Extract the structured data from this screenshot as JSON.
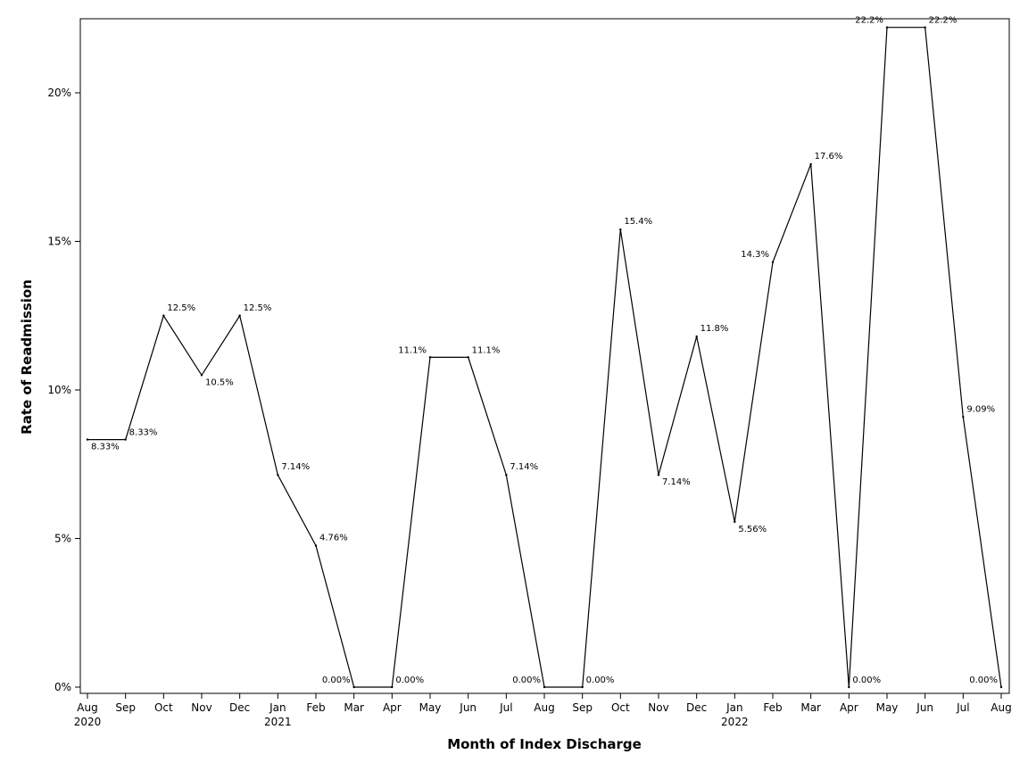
{
  "chart_data": {
    "type": "line",
    "xlabel": "Month of Index Discharge",
    "ylabel": "Rate of Readmission",
    "ylim": [
      0,
      22.5
    ],
    "yticks": [
      0,
      5,
      10,
      15,
      20
    ],
    "ytick_labels": [
      "0%",
      "5%",
      "10%",
      "15%",
      "20%"
    ],
    "grid": false,
    "legend": "none",
    "x": [
      "2020-08",
      "2020-09",
      "2020-10",
      "2020-11",
      "2020-12",
      "2021-01",
      "2021-02",
      "2021-03",
      "2021-04",
      "2021-05",
      "2021-06",
      "2021-07",
      "2021-08",
      "2021-09",
      "2021-10",
      "2021-11",
      "2021-12",
      "2022-01",
      "2022-02",
      "2022-03",
      "2022-04",
      "2022-05",
      "2022-06",
      "2022-07",
      "2022-08"
    ],
    "month_labels": [
      "Aug",
      "Sep",
      "Oct",
      "Nov",
      "Dec",
      "Jan",
      "Feb",
      "Mar",
      "Apr",
      "May",
      "Jun",
      "Jul",
      "Aug",
      "Sep",
      "Oct",
      "Nov",
      "Dec",
      "Jan",
      "Feb",
      "Mar",
      "Apr",
      "May",
      "Jun",
      "Jul",
      "Aug"
    ],
    "year_labels": {
      "0": "2020",
      "5": "2021",
      "17": "2022"
    },
    "series": [
      {
        "values": [
          8.33,
          8.33,
          12.5,
          10.5,
          12.5,
          7.14,
          4.76,
          0,
          0,
          11.1,
          11.1,
          7.14,
          0,
          0,
          15.4,
          7.14,
          11.8,
          5.56,
          14.3,
          17.6,
          0,
          22.2,
          22.2,
          9.09,
          0
        ],
        "data_labels": [
          "8.33%",
          "8.33%",
          "12.5%",
          "10.5%",
          "12.5%",
          "7.14%",
          "4.76%",
          "0.00%",
          "0.00%",
          "11.1%",
          "11.1%",
          "7.14%",
          "0.00%",
          "0.00%",
          "15.4%",
          "7.14%",
          "11.8%",
          "5.56%",
          "14.3%",
          "17.6%",
          "0.00%",
          "22.2%",
          "22.2%",
          "9.09%",
          "0.00%"
        ]
      }
    ]
  }
}
